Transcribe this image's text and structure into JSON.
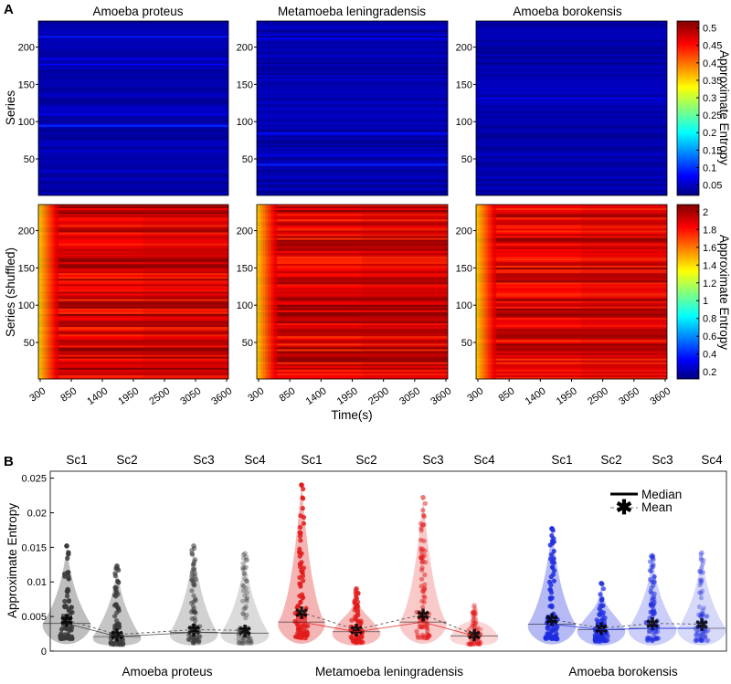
{
  "figure": {
    "panel_a_label": "A",
    "panel_b_label": "B"
  },
  "chart_data": [
    {
      "type": "heatmap",
      "panel": "A-top",
      "titles": [
        "Amoeba proteus",
        "Metamoeba leningradensis",
        "Amoeba borokensis"
      ],
      "ylabel": "Series",
      "yticks": [
        "50",
        "100",
        "150",
        "200"
      ],
      "ylim": [
        1,
        235
      ],
      "colorbar": {
        "label": "Approximate Entropy",
        "ticks": [
          "0.05",
          "0.1",
          "0.15",
          "0.2",
          "0.25",
          "0.3",
          "0.35",
          "0.4",
          "0.45",
          "0.5"
        ],
        "range": [
          0.02,
          0.52
        ],
        "colormap": "jet"
      },
      "typical_value": 0.04
    },
    {
      "type": "heatmap",
      "panel": "A-bottom",
      "titles": [
        "Amoeba proteus",
        "Metamoeba leningradensis",
        "Amoeba borokensis"
      ],
      "ylabel": "Series (shuffled)",
      "xlabel": "Time(s)",
      "xticks": [
        "300",
        "850",
        "1400",
        "1950",
        "2500",
        "3050",
        "3600"
      ],
      "yticks": [
        "50",
        "100",
        "150",
        "200"
      ],
      "ylim": [
        1,
        235
      ],
      "colorbar": {
        "label": "Approximate Entropy",
        "ticks": [
          "0.2",
          "0.4",
          "0.6",
          "0.8",
          "1",
          "1.2",
          "1.4",
          "1.6",
          "1.8",
          "2"
        ],
        "range": [
          0.12,
          2.08
        ],
        "colormap": "jet"
      },
      "typical_value": 1.9
    },
    {
      "type": "violin",
      "panel": "B",
      "ylabel": "Approximate Entropy",
      "ylim": [
        0,
        0.026
      ],
      "yticks": [
        "0",
        "0.005",
        "0.01",
        "0.015",
        "0.02",
        "0.025"
      ],
      "categories": [
        "Sc1",
        "Sc2",
        "Sc3",
        "Sc4"
      ],
      "legend": {
        "median": "Median",
        "mean": "Mean",
        "position": "top-right"
      },
      "groups": [
        {
          "name": "Amoeba proteus",
          "color": "#3a3a3a",
          "mean": [
            0.0045,
            0.0024,
            0.0031,
            0.003
          ],
          "median": [
            0.004,
            0.0021,
            0.0027,
            0.0026
          ],
          "max": [
            0.0152,
            0.0123,
            0.0152,
            0.0141
          ]
        },
        {
          "name": "Metamoeba leningradensis",
          "color": "#e21b1b",
          "mean": [
            0.0056,
            0.0031,
            0.0053,
            0.0024
          ],
          "median": [
            0.0042,
            0.0028,
            0.0042,
            0.0022
          ],
          "max": [
            0.024,
            0.009,
            0.0222,
            0.0066
          ]
        },
        {
          "name": "Amoeba borokensis",
          "color": "#1f2de0",
          "mean": [
            0.0046,
            0.0033,
            0.004,
            0.0039
          ],
          "median": [
            0.0039,
            0.0031,
            0.0033,
            0.0033
          ],
          "max": [
            0.0177,
            0.0098,
            0.0138,
            0.0142
          ]
        }
      ]
    }
  ]
}
